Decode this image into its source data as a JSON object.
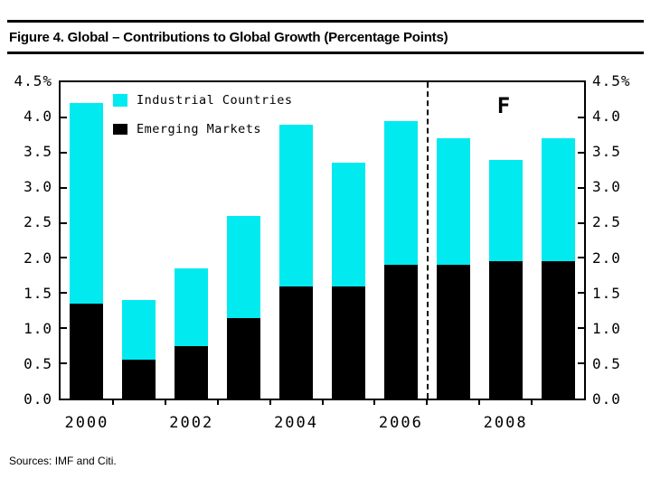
{
  "figure": {
    "title": "Figure 4. Global – Contributions to Global Growth (Percentage Points)",
    "source": "Sources: IMF and Citi.",
    "forecast_label": "F"
  },
  "chart_data": {
    "type": "bar",
    "stacked": true,
    "title": "Global – Contributions to Global Growth (Percentage Points)",
    "categories": [
      "2000",
      "2001",
      "2002",
      "2003",
      "2004",
      "2005",
      "2006",
      "2007",
      "2008",
      "2009"
    ],
    "series": [
      {
        "name": "Emerging Markets",
        "color": "#000000",
        "values": [
          1.35,
          0.55,
          0.75,
          1.15,
          1.6,
          1.6,
          1.9,
          1.9,
          1.95,
          1.95
        ]
      },
      {
        "name": "Industrial Countries",
        "color": "#00EAF0",
        "values": [
          2.85,
          0.85,
          1.1,
          1.45,
          2.3,
          1.75,
          2.05,
          1.8,
          1.45,
          1.75
        ]
      }
    ],
    "totals": [
      4.2,
      1.4,
      1.85,
      2.6,
      3.9,
      3.35,
      3.95,
      3.7,
      3.4,
      3.7
    ],
    "ylim": [
      0,
      4.5
    ],
    "ytick_step": 0.5,
    "yticks_left": [
      "4.5%",
      "4.0",
      "3.5",
      "3.0",
      "2.5",
      "2.0",
      "1.5",
      "1.0",
      "0.5",
      "0.0"
    ],
    "yticks_right": [
      "4.5%",
      "4.0",
      "3.5",
      "3.0",
      "2.5",
      "2.0",
      "1.5",
      "1.0",
      "0.5",
      "0.0"
    ],
    "xtick_labels": [
      "2000",
      "2002",
      "2004",
      "2006",
      "2008"
    ],
    "xtick_slots": [
      0,
      2,
      4,
      6,
      8
    ],
    "divider_boundary_index": 7,
    "grid": false,
    "legend_position": "upper-left-inside",
    "legend": [
      {
        "label": "Industrial Countries",
        "color": "#00EAF0"
      },
      {
        "label": "Emerging Markets",
        "color": "#000000"
      }
    ]
  }
}
